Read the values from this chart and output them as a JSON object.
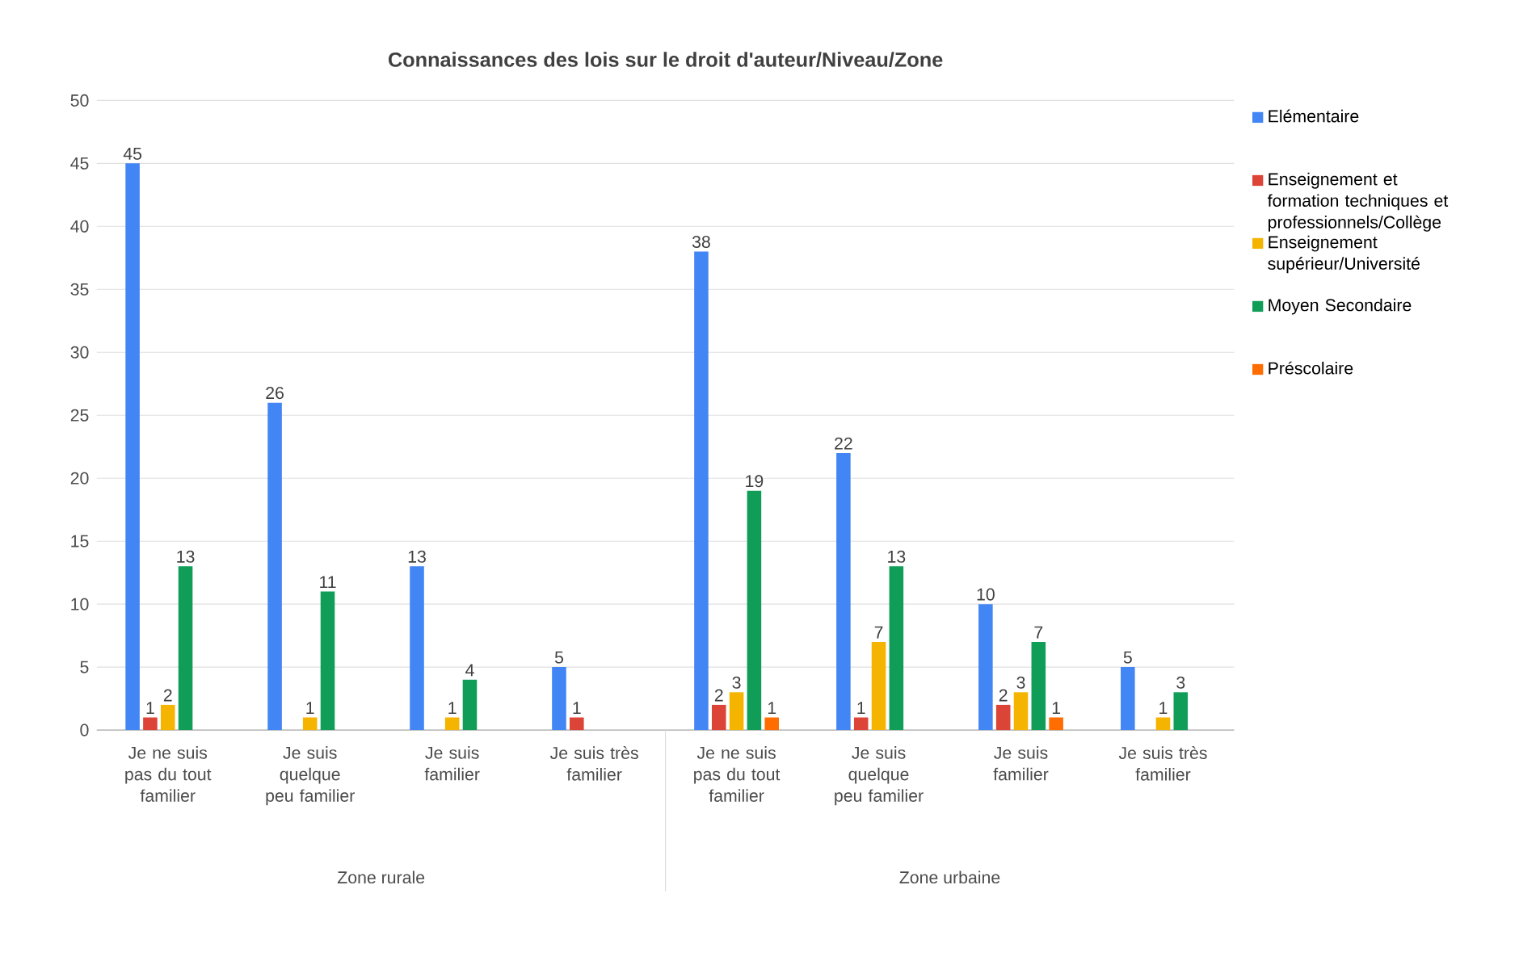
{
  "chart_data": {
    "type": "bar",
    "title": "Connaissances des lois sur le droit d'auteur/Niveau/Zone",
    "categories": [
      "Je ne suis pas du tout familier",
      "Je suis quelque peu familier",
      "Je suis familier",
      "Je suis très familier",
      "Je ne suis pas du tout familier",
      "Je suis quelque peu familier",
      "Je suis familier",
      "Je suis très familier"
    ],
    "series": [
      {
        "name": "Elémentaire",
        "color": "#4285f4",
        "values": [
          45,
          26,
          13,
          5,
          38,
          22,
          10,
          5
        ]
      },
      {
        "name": "Enseignement et formation techniques et professionnels/Collège",
        "color": "#db4437",
        "values": [
          1,
          null,
          null,
          1,
          2,
          1,
          2,
          null
        ]
      },
      {
        "name": "Enseignement supérieur/Université",
        "color": "#f4b400",
        "values": [
          2,
          1,
          1,
          null,
          3,
          7,
          3,
          1
        ]
      },
      {
        "name": "Moyen Secondaire",
        "color": "#0f9d58",
        "values": [
          13,
          11,
          4,
          null,
          19,
          13,
          7,
          3
        ]
      },
      {
        "name": "Préscolaire",
        "color": "#ff6d01",
        "values": [
          null,
          null,
          null,
          null,
          1,
          null,
          1,
          null
        ]
      }
    ],
    "annotations": [
      "Zone rurale",
      "Zone urbaine"
    ],
    "ylim": [
      0,
      50
    ],
    "yticks": [
      0,
      5,
      10,
      15,
      20,
      25,
      30,
      35,
      40,
      45,
      50
    ],
    "grid": "y",
    "legend": "right",
    "data_labels": true
  }
}
